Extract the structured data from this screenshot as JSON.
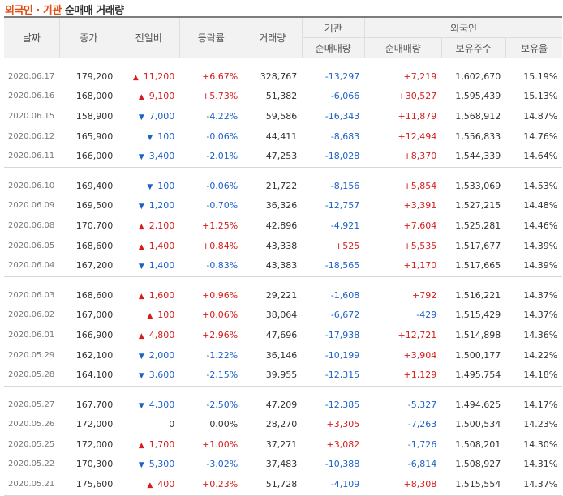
{
  "title": {
    "part1": "외국인 · 기관",
    "part2": "순매매 거래량"
  },
  "header": {
    "date": "날짜",
    "close": "종가",
    "change": "전일비",
    "rate": "등락률",
    "volume": "거래량",
    "inst": "기관",
    "foreign": "외국인",
    "inst_net": "순매매량",
    "foreign_net": "순매매량",
    "holdings": "보유주수",
    "ratio": "보유율"
  },
  "groups": [
    [
      {
        "date": "2020.06.17",
        "close": "179,200",
        "dir": "up",
        "diff": "11,200",
        "rate": "+6.67%",
        "vol": "328,767",
        "inst": "-13,297",
        "frgn": "+7,219",
        "hold": "1,602,670",
        "ratio": "15.19%"
      },
      {
        "date": "2020.06.16",
        "close": "168,000",
        "dir": "up",
        "diff": "9,100",
        "rate": "+5.73%",
        "vol": "51,382",
        "inst": "-6,066",
        "frgn": "+30,527",
        "hold": "1,595,439",
        "ratio": "15.13%"
      },
      {
        "date": "2020.06.15",
        "close": "158,900",
        "dir": "dn",
        "diff": "7,000",
        "rate": "-4.22%",
        "vol": "59,586",
        "inst": "-16,343",
        "frgn": "+11,879",
        "hold": "1,568,912",
        "ratio": "14.87%"
      },
      {
        "date": "2020.06.12",
        "close": "165,900",
        "dir": "dn",
        "diff": "100",
        "rate": "-0.06%",
        "vol": "44,411",
        "inst": "-8,683",
        "frgn": "+12,494",
        "hold": "1,556,833",
        "ratio": "14.76%"
      },
      {
        "date": "2020.06.11",
        "close": "166,000",
        "dir": "dn",
        "diff": "3,400",
        "rate": "-2.01%",
        "vol": "47,253",
        "inst": "-18,028",
        "frgn": "+8,370",
        "hold": "1,544,339",
        "ratio": "14.64%"
      }
    ],
    [
      {
        "date": "2020.06.10",
        "close": "169,400",
        "dir": "dn",
        "diff": "100",
        "rate": "-0.06%",
        "vol": "21,722",
        "inst": "-8,156",
        "frgn": "+5,854",
        "hold": "1,533,069",
        "ratio": "14.53%"
      },
      {
        "date": "2020.06.09",
        "close": "169,500",
        "dir": "dn",
        "diff": "1,200",
        "rate": "-0.70%",
        "vol": "36,326",
        "inst": "-12,757",
        "frgn": "+3,391",
        "hold": "1,527,215",
        "ratio": "14.48%"
      },
      {
        "date": "2020.06.08",
        "close": "170,700",
        "dir": "up",
        "diff": "2,100",
        "rate": "+1.25%",
        "vol": "42,896",
        "inst": "-4,921",
        "frgn": "+7,604",
        "hold": "1,525,281",
        "ratio": "14.46%"
      },
      {
        "date": "2020.06.05",
        "close": "168,600",
        "dir": "up",
        "diff": "1,400",
        "rate": "+0.84%",
        "vol": "43,338",
        "inst": "+525",
        "frgn": "+5,535",
        "hold": "1,517,677",
        "ratio": "14.39%"
      },
      {
        "date": "2020.06.04",
        "close": "167,200",
        "dir": "dn",
        "diff": "1,400",
        "rate": "-0.83%",
        "vol": "43,383",
        "inst": "-18,565",
        "frgn": "+1,170",
        "hold": "1,517,665",
        "ratio": "14.39%"
      }
    ],
    [
      {
        "date": "2020.06.03",
        "close": "168,600",
        "dir": "up",
        "diff": "1,600",
        "rate": "+0.96%",
        "vol": "29,221",
        "inst": "-1,608",
        "frgn": "+792",
        "hold": "1,516,221",
        "ratio": "14.37%"
      },
      {
        "date": "2020.06.02",
        "close": "167,000",
        "dir": "up",
        "diff": "100",
        "rate": "+0.06%",
        "vol": "38,064",
        "inst": "-6,672",
        "frgn": "-429",
        "hold": "1,515,429",
        "ratio": "14.37%"
      },
      {
        "date": "2020.06.01",
        "close": "166,900",
        "dir": "up",
        "diff": "4,800",
        "rate": "+2.96%",
        "vol": "47,696",
        "inst": "-17,938",
        "frgn": "+12,721",
        "hold": "1,514,898",
        "ratio": "14.36%"
      },
      {
        "date": "2020.05.29",
        "close": "162,100",
        "dir": "dn",
        "diff": "2,000",
        "rate": "-1.22%",
        "vol": "36,146",
        "inst": "-10,199",
        "frgn": "+3,904",
        "hold": "1,500,177",
        "ratio": "14.22%"
      },
      {
        "date": "2020.05.28",
        "close": "164,100",
        "dir": "dn",
        "diff": "3,600",
        "rate": "-2.15%",
        "vol": "39,955",
        "inst": "-12,315",
        "frgn": "+1,129",
        "hold": "1,495,754",
        "ratio": "14.18%"
      }
    ],
    [
      {
        "date": "2020.05.27",
        "close": "167,700",
        "dir": "dn",
        "diff": "4,300",
        "rate": "-2.50%",
        "vol": "47,209",
        "inst": "-12,385",
        "frgn": "-5,327",
        "hold": "1,494,625",
        "ratio": "14.17%"
      },
      {
        "date": "2020.05.26",
        "close": "172,000",
        "dir": "none",
        "diff": "0",
        "rate": "0.00%",
        "vol": "28,270",
        "inst": "+3,305",
        "frgn": "-7,263",
        "hold": "1,500,534",
        "ratio": "14.23%"
      },
      {
        "date": "2020.05.25",
        "close": "172,000",
        "dir": "up",
        "diff": "1,700",
        "rate": "+1.00%",
        "vol": "37,271",
        "inst": "+3,082",
        "frgn": "-1,726",
        "hold": "1,508,201",
        "ratio": "14.30%"
      },
      {
        "date": "2020.05.22",
        "close": "170,300",
        "dir": "dn",
        "diff": "5,300",
        "rate": "-3.02%",
        "vol": "37,483",
        "inst": "-10,388",
        "frgn": "-6,814",
        "hold": "1,508,927",
        "ratio": "14.31%"
      },
      {
        "date": "2020.05.21",
        "close": "175,600",
        "dir": "up",
        "diff": "400",
        "rate": "+0.23%",
        "vol": "51,728",
        "inst": "-4,109",
        "frgn": "+8,308",
        "hold": "1,515,554",
        "ratio": "14.37%"
      }
    ]
  ],
  "colors": {
    "up": "#d81c1c",
    "down": "#1d62c8",
    "title_accent": "#e24d12"
  }
}
